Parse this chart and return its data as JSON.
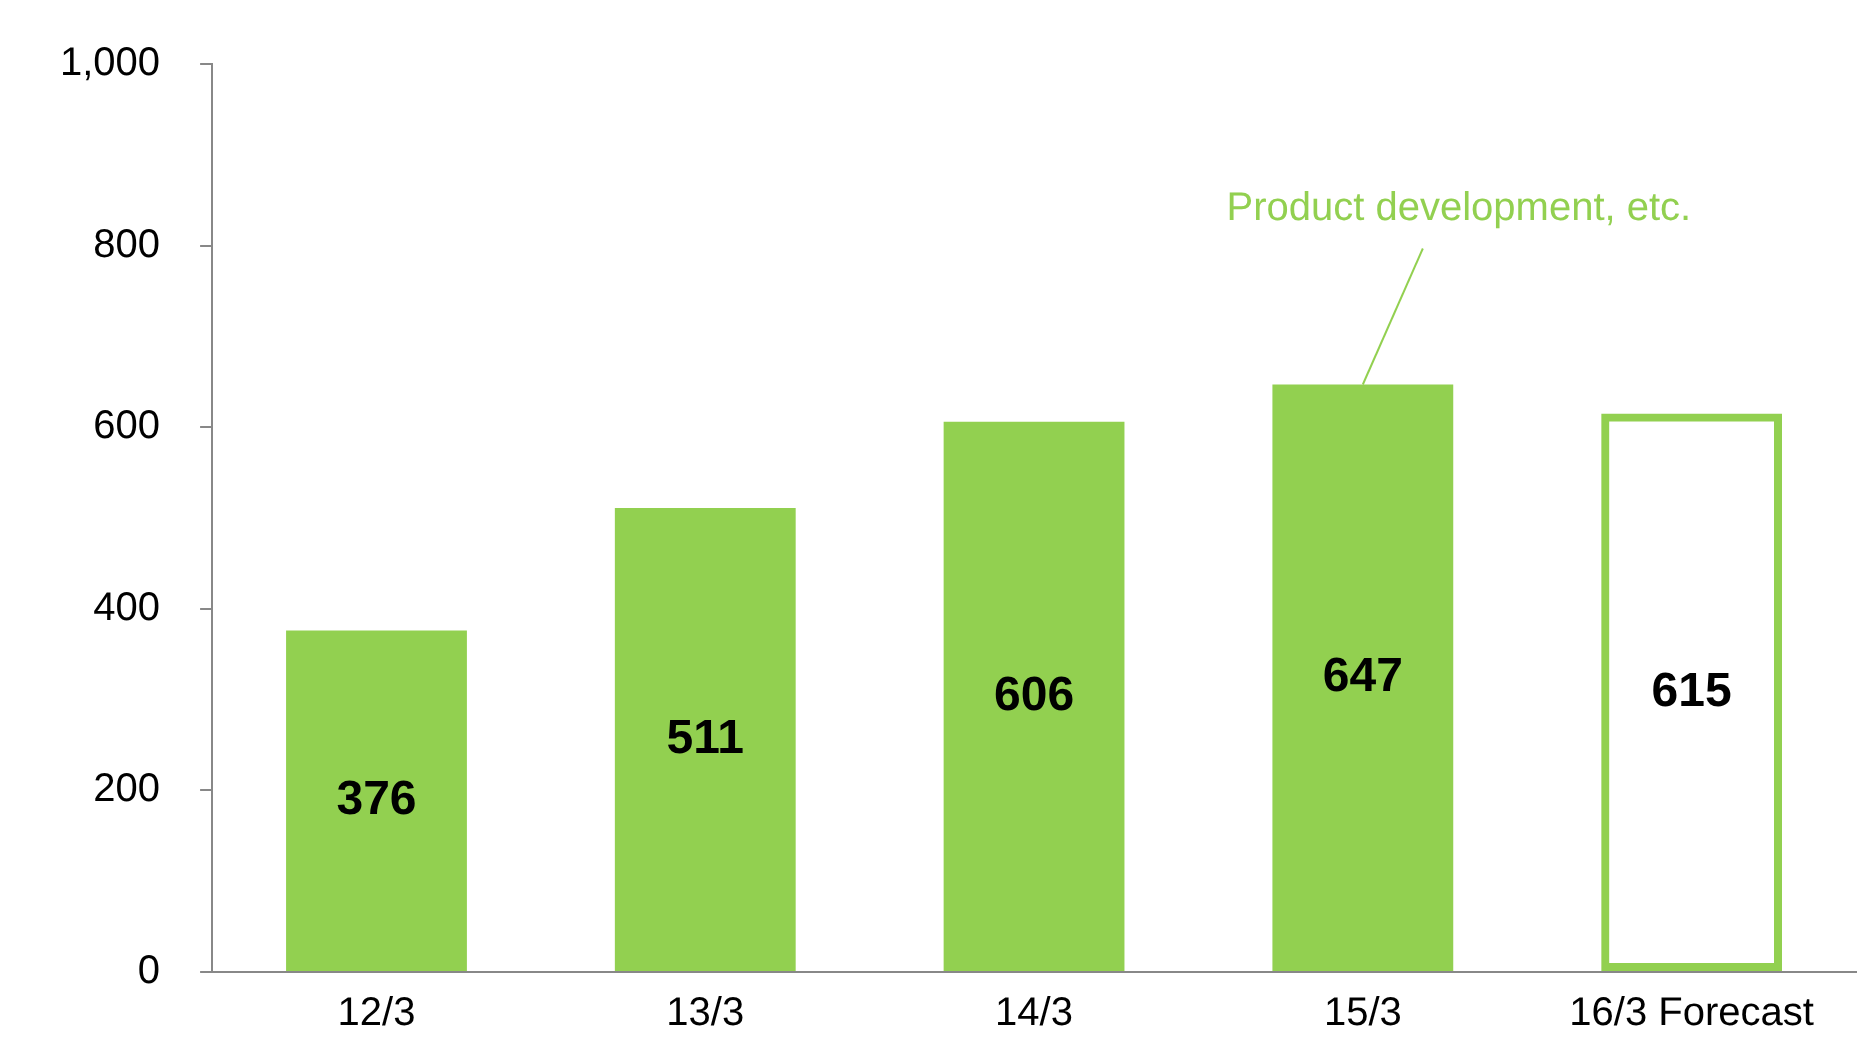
{
  "chart_data": {
    "type": "bar",
    "categories": [
      "12/3",
      "13/3",
      "14/3",
      "15/3",
      "16/3 Forecast"
    ],
    "series": [
      {
        "color": "#92d050",
        "values": [
          376,
          511,
          606,
          647,
          null
        ]
      },
      {
        "color": "#92d050",
        "values": [
          null,
          null,
          null,
          null,
          615
        ]
      }
    ],
    "ylim": [
      0,
      1000
    ],
    "yticks": [
      0,
      200,
      400,
      600,
      800,
      {
        "value": 1000,
        "label": "1,000"
      }
    ],
    "grid": false,
    "legend": false,
    "data_labels": true,
    "annotations": [
      {
        "text": "Product development, etc.",
        "x": "15/3",
        "y": 647
      }
    ]
  }
}
